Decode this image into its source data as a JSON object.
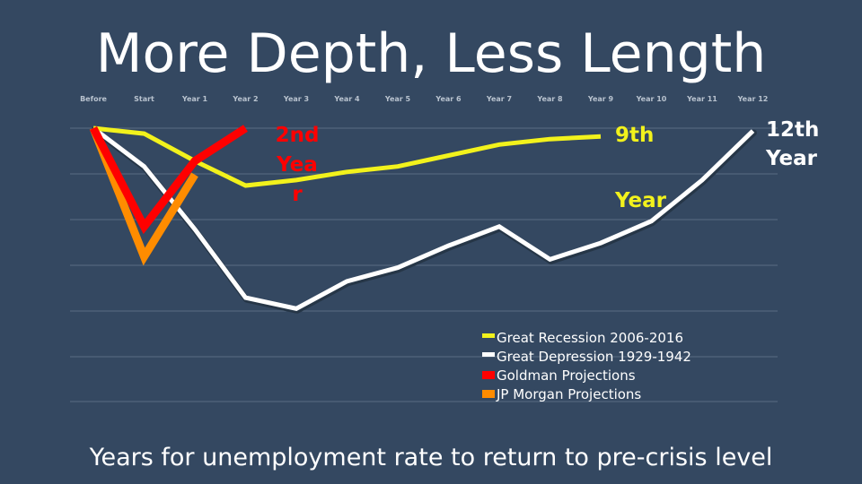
{
  "title": "More Depth, Less Length",
  "subtitle": "Years for unemployment rate to return to pre-crisis level",
  "chart_data": {
    "type": "line",
    "categories": [
      "Before",
      "Start",
      "Year 1",
      "Year 2",
      "Year 3",
      "Year 4",
      "Year 5",
      "Year 6",
      "Year 7",
      "Year 8",
      "Year 9",
      "Year 10",
      "Year 11",
      "Year 12"
    ],
    "ylim": [
      0,
      100
    ],
    "grid": true,
    "legend_position": "bottom-right",
    "series": [
      {
        "name": "Great Recession 2006-2016",
        "color": "#f2f21c",
        "values": [
          100,
          98,
          88,
          79,
          81,
          84,
          86,
          90,
          94,
          96,
          97,
          null,
          null,
          null
        ]
      },
      {
        "name": "Great Depression 1929-1942",
        "color": "#ffffff",
        "values": [
          100,
          86,
          63,
          38,
          34,
          44,
          49,
          57,
          64,
          52,
          58,
          66,
          81,
          99
        ]
      },
      {
        "name": "Goldman Projections",
        "color": "#ff0000",
        "values": [
          100,
          64,
          88,
          100,
          null,
          null,
          null,
          null,
          null,
          null,
          null,
          null,
          null,
          null
        ]
      },
      {
        "name": "JP Morgan Projections",
        "color": "#ff8c00",
        "values": [
          100,
          53,
          83,
          null,
          null,
          null,
          null,
          null,
          null,
          null,
          null,
          null,
          null,
          null
        ]
      }
    ],
    "annotations": [
      {
        "text": [
          "2nd",
          "Yea",
          "r"
        ],
        "color": "#ff0000"
      },
      {
        "text": [
          "9th",
          "Year"
        ],
        "color": "#f2f21c"
      },
      {
        "text": [
          "12th",
          "Year"
        ],
        "color": "#ffffff"
      }
    ]
  }
}
